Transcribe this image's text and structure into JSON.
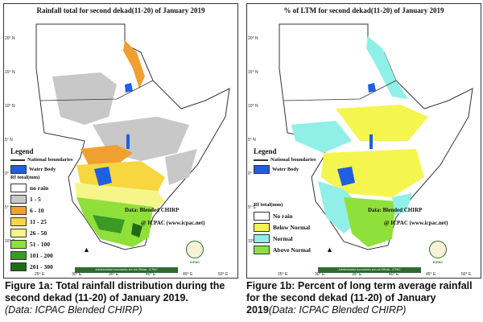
{
  "left": {
    "title": "Rainfall total for second dekad(11-20) of January 2019",
    "legend_title": "Legend",
    "national_boundaries": "National boundaries",
    "water_body": "Water Body",
    "rf_title": "Rf total(mm)",
    "classes": [
      {
        "label": "no rain",
        "color": "#ffffff"
      },
      {
        "label": "1 - 5",
        "color": "#c8c8c8"
      },
      {
        "label": "6 - 10",
        "color": "#f0a030"
      },
      {
        "label": "11 - 25",
        "color": "#f7d640"
      },
      {
        "label": "26 - 50",
        "color": "#f5f58a"
      },
      {
        "label": "51 - 100",
        "color": "#8fe03a"
      },
      {
        "label": "101 - 200",
        "color": "#3a9a24"
      },
      {
        "label": "201 - 300",
        "color": "#1f6a14"
      }
    ],
    "data_source": "Data: Blended CHIRP",
    "copyright": "@ ICPAC (www.icpac.net)",
    "footer": "Administrative boundaries are not Official - ICPAC",
    "logo_text": "ICPAC"
  },
  "right": {
    "title": "% of LTM for second dekad(11-20) of January 2019",
    "legend_title": "Legend",
    "national_boundaries": "National boundaries",
    "water_body": "Water Body",
    "rf_title": "Rf total(mm)",
    "classes": [
      {
        "label": "No rain",
        "color": "#ffffff"
      },
      {
        "label": "Below Normal",
        "color": "#f5f550"
      },
      {
        "label": "Normal",
        "color": "#90f0e8"
      },
      {
        "label": "Above Normal",
        "color": "#8fe03a"
      }
    ],
    "data_source": "Data: Blended CHIRP",
    "copyright": "@ ICPAC (www.icpac.net)",
    "footer": "Administrative boundaries are not Official - ICPAC",
    "logo_text": "ICPAC"
  },
  "latitudes": [
    "20° N",
    "15° N",
    "10° N",
    "5° N",
    "0°",
    "5° S",
    "10° S"
  ],
  "longitudes": [
    "25° E",
    "30° E",
    "35° E",
    "40° E",
    "45° E",
    "50° E"
  ],
  "water_color": "#1f5fe0",
  "captions": {
    "a_bold": "Figure 1a: Total rainfall distribution during the second dekad (11-20) of January 2019.",
    "a_italic": "(Data: ICPAC Blended CHIRP)",
    "b_bold": "Figure 1b: Percent of long term average rainfall for the second dekad (11-20) of January 2019",
    "b_italic": "(Data: ICPAC Blended CHIRP)"
  }
}
